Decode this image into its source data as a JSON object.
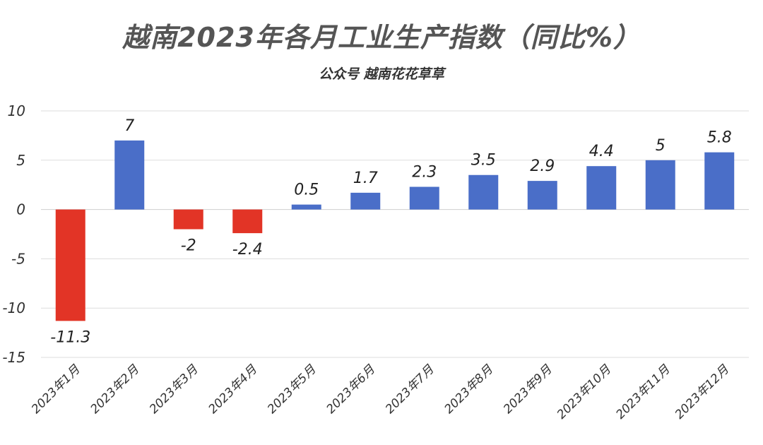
{
  "title": "越南2023年各月工业生产指数（同比%）",
  "subtitle": "公众号 越南花花草草",
  "colors": {
    "positive": "#4a6ec8",
    "negative": "#e23426",
    "grid": "#dddddd"
  },
  "chart_data": {
    "type": "bar",
    "title": "越南2023年各月工业生产指数（同比%）",
    "subtitle": "公众号 越南花花草草",
    "categories": [
      "2023年1月",
      "2023年2月",
      "2023年3月",
      "2023年4月",
      "2023年5月",
      "2023年6月",
      "2023年7月",
      "2023年8月",
      "2023年9月",
      "2023年10月",
      "2023年11月",
      "2023年12月"
    ],
    "values": [
      -11.3,
      7,
      -2,
      -2.4,
      0.5,
      1.7,
      2.3,
      3.5,
      2.9,
      4.4,
      5,
      5.8
    ],
    "data_labels": [
      "-11.3",
      "7",
      "-2",
      "-2.4",
      "0.5",
      "1.7",
      "2.3",
      "3.5",
      "2.9",
      "4.4",
      "5",
      "5.8"
    ],
    "ylim": [
      -15,
      10
    ],
    "yticks": [
      10,
      5,
      0,
      -5,
      -10,
      -15
    ],
    "grid": true,
    "xlabel": "",
    "ylabel": ""
  }
}
